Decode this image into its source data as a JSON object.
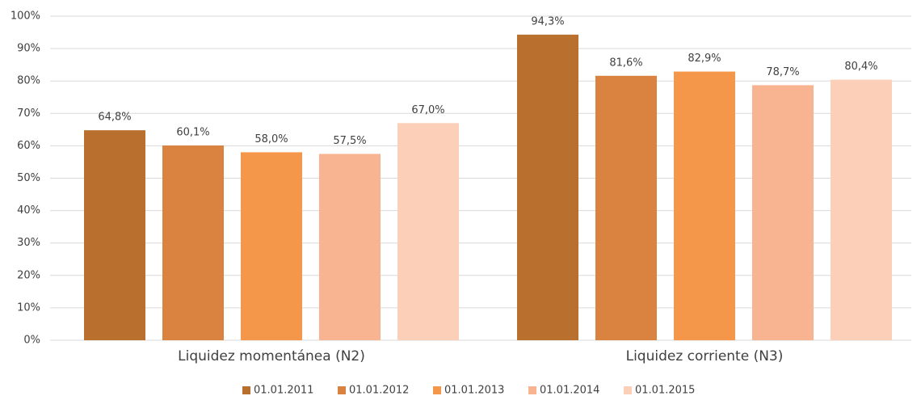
{
  "chart_data": {
    "type": "bar",
    "categories": [
      "Liquidez momentánea (N2)",
      "Liquidez corriente (N3)"
    ],
    "series": [
      {
        "name": "01.01.2011",
        "color": "#b9702f",
        "values": [
          64.8,
          94.3
        ],
        "value_labels": [
          "64,8%",
          "94,3%"
        ]
      },
      {
        "name": "01.01.2012",
        "color": "#da823f",
        "values": [
          60.1,
          81.6
        ],
        "value_labels": [
          "60,1%",
          "81,6%"
        ]
      },
      {
        "name": "01.01.2013",
        "color": "#f4974a",
        "values": [
          58.0,
          82.9
        ],
        "value_labels": [
          "58,0%",
          "82,9%"
        ]
      },
      {
        "name": "01.01.2014",
        "color": "#f8b390",
        "values": [
          57.5,
          78.7
        ],
        "value_labels": [
          "57,5%",
          "78,7%"
        ]
      },
      {
        "name": "01.01.2015",
        "color": "#fbcfb8",
        "values": [
          67.0,
          80.4
        ],
        "value_labels": [
          "67,0%",
          "80,4%"
        ]
      }
    ],
    "ylim": [
      0,
      100
    ],
    "yticks": [
      {
        "value": 0,
        "label": "0%"
      },
      {
        "value": 10,
        "label": "10%"
      },
      {
        "value": 20,
        "label": "20%"
      },
      {
        "value": 30,
        "label": "30%"
      },
      {
        "value": 40,
        "label": "40%"
      },
      {
        "value": 50,
        "label": "50%"
      },
      {
        "value": 60,
        "label": "60%"
      },
      {
        "value": 70,
        "label": "70%"
      },
      {
        "value": 80,
        "label": "80%"
      },
      {
        "value": 90,
        "label": "90%"
      },
      {
        "value": 100,
        "label": "100%"
      }
    ],
    "grid": true,
    "legend": "bottom"
  }
}
